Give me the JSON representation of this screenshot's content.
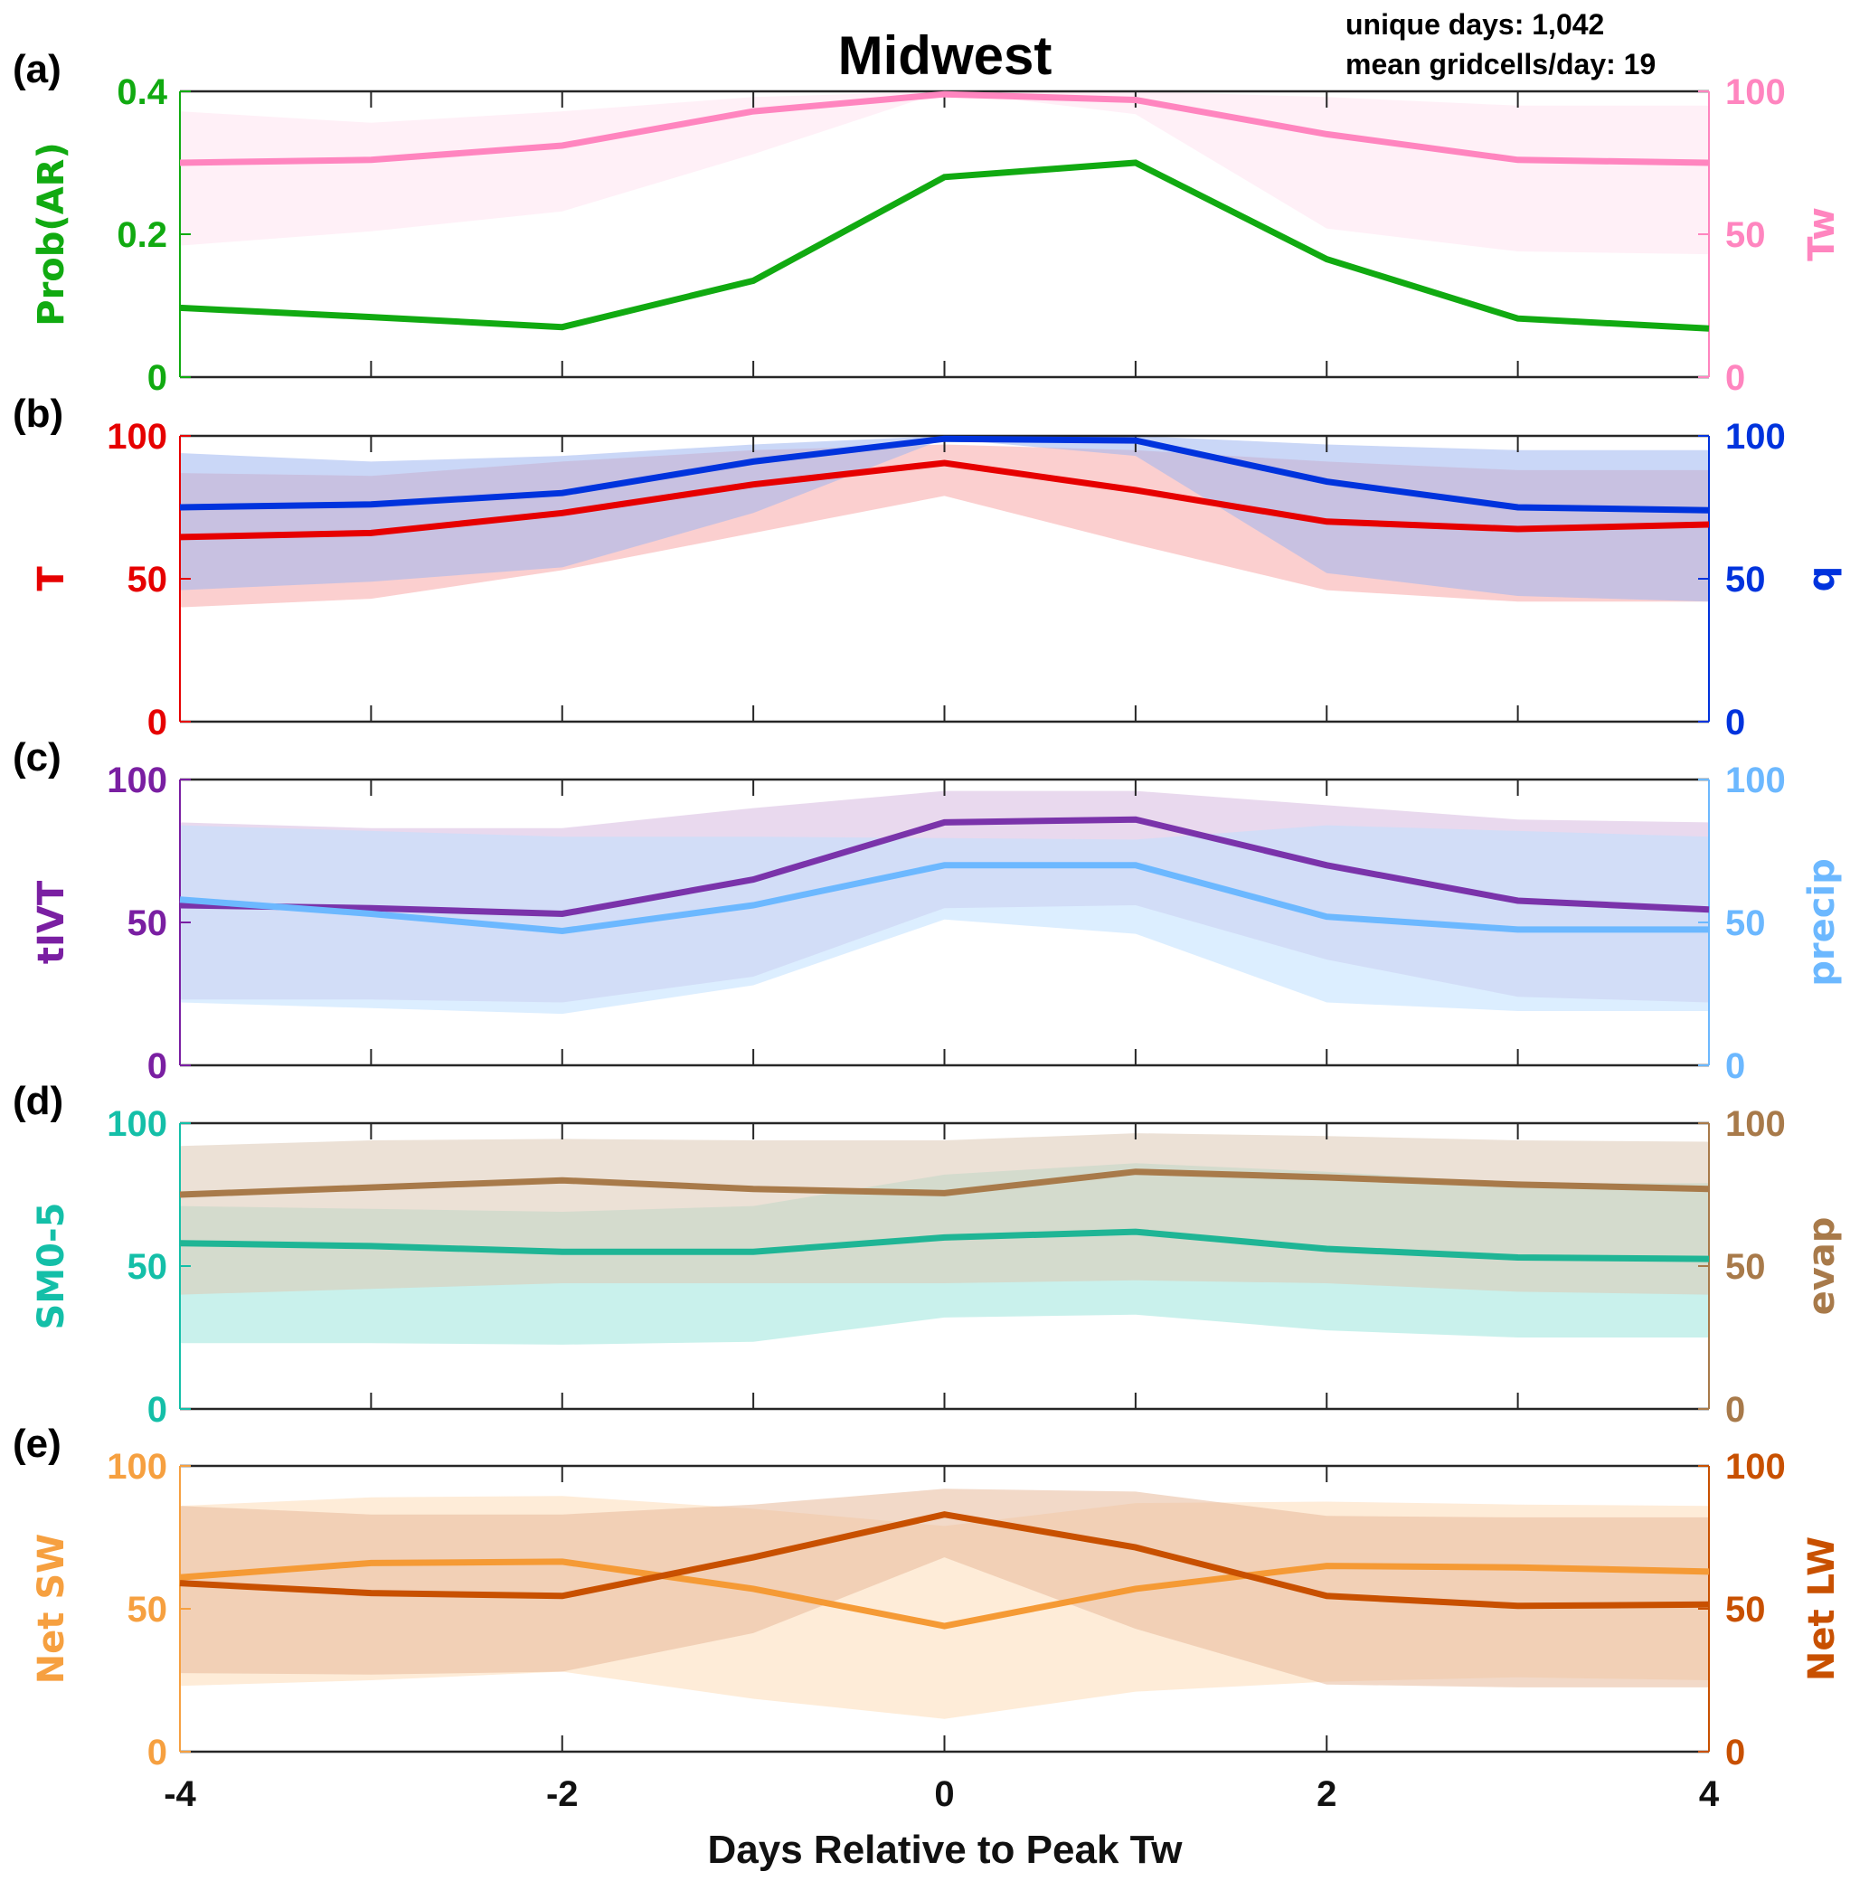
{
  "chart_data": {
    "type": "line",
    "title": "Midwest",
    "annotations": [
      "unique days: 1,042",
      "mean gridcells/day: 19"
    ],
    "xlabel": "Days Relative to Peak Tw",
    "x": [
      -4,
      -3,
      -2,
      -1,
      0,
      1,
      2,
      3,
      4
    ],
    "xlim": [
      -4,
      4
    ],
    "xticks": [
      -4,
      -2,
      0,
      2,
      4
    ],
    "xtick_labels": [
      "-4",
      "-2",
      "0",
      "2",
      "4"
    ],
    "grid": false,
    "panels": [
      {
        "letter": "(a)",
        "left_axis": {
          "label": "Prob(AR)",
          "color": "#11AA11",
          "ylim": [
            0,
            0.4
          ],
          "ticks": [
            0,
            0.2,
            0.4
          ],
          "tick_labels": [
            "0",
            "0.2",
            "0.4"
          ]
        },
        "right_axis": {
          "label": "Tw",
          "color": "#FF85BF",
          "ylim": [
            0,
            100
          ],
          "ticks": [
            0,
            50,
            100
          ],
          "tick_labels": [
            "0",
            "50",
            "100"
          ]
        },
        "series": [
          {
            "name": "Tw",
            "axis": "right",
            "color": "#FF85BF",
            "band_color": "#FFE3F0",
            "values": [
              75,
              76,
              81,
              93,
              99,
              97,
              85,
              76,
              75
            ],
            "upper": [
              93,
              89,
              93,
              98,
              100,
              100,
              98,
              95,
              95
            ],
            "lower": [
              46,
              51,
              58,
              78,
              100,
              92,
              52,
              44,
              43
            ]
          },
          {
            "name": "Prob(AR)",
            "axis": "left",
            "color": "#11AA11",
            "values": [
              0.097,
              0.084,
              0.07,
              0.135,
              0.28,
              0.3,
              0.165,
              0.082,
              0.068
            ]
          }
        ]
      },
      {
        "letter": "(b)",
        "left_axis": {
          "label": "T",
          "color": "#E60000",
          "ylim": [
            0,
            100
          ],
          "ticks": [
            0,
            50,
            100
          ],
          "tick_labels": [
            "0",
            "50",
            "100"
          ]
        },
        "right_axis": {
          "label": "q",
          "color": "#0033DD",
          "ylim": [
            0,
            100
          ],
          "ticks": [
            0,
            50,
            100
          ],
          "tick_labels": [
            "0",
            "50",
            "100"
          ]
        },
        "series": [
          {
            "name": "T",
            "axis": "left",
            "color": "#E60000",
            "band_color": "#F7A8A8",
            "values": [
              64.6,
              66,
              73,
              83,
              90.5,
              81,
              70,
              67.4,
              69
            ],
            "upper": [
              87,
              86,
              91,
              95,
              97,
              95,
              91,
              88,
              88
            ],
            "lower": [
              40,
              43,
              53,
              66,
              79,
              62,
              46,
              42,
              42
            ]
          },
          {
            "name": "q",
            "axis": "right",
            "color": "#0033DD",
            "band_color": "#9FB6F0",
            "values": [
              75,
              76,
              80,
              91,
              99,
              98.4,
              84,
              75,
              74
            ],
            "upper": [
              94,
              91,
              93,
              97,
              100,
              100,
              97,
              95,
              95
            ],
            "lower": [
              46,
              49,
              54,
              73,
              99,
              93,
              52,
              44,
              42
            ]
          }
        ]
      },
      {
        "letter": "(c)",
        "left_axis": {
          "label": "tIVT",
          "color": "#7A1FA2",
          "ylim": [
            0,
            100
          ],
          "ticks": [
            0,
            50,
            100
          ],
          "tick_labels": [
            "0",
            "50",
            "100"
          ]
        },
        "right_axis": {
          "label": "precip",
          "color": "#6CB8FF",
          "ylim": [
            0,
            100
          ],
          "ticks": [
            0,
            50,
            100
          ],
          "tick_labels": [
            "0",
            "50",
            "100"
          ]
        },
        "series": [
          {
            "name": "tIVT",
            "axis": "left",
            "color": "#7A33AA",
            "band_color": "#D7B9E0",
            "values": [
              56,
              55,
              53,
              65,
              85,
              86,
              70,
              57.6,
              54.5
            ],
            "upper": [
              85,
              83,
              83,
              90,
              96,
              96,
              91,
              86,
              85
            ],
            "lower": [
              23,
              23,
              22,
              31,
              55,
              56,
              37,
              24,
              22
            ]
          },
          {
            "name": "precip",
            "axis": "right",
            "color": "#6CB8FF",
            "band_color": "#BFE0FF",
            "values": [
              58,
              53,
              47,
              56,
              70,
              70,
              52,
              47.5,
              47.5
            ],
            "upper": [
              84,
              82,
              80,
              80,
              79.5,
              79,
              84,
              82,
              80
            ],
            "lower": [
              22,
              20,
              18,
              28,
              51,
              46,
              22,
              19,
              19
            ]
          }
        ]
      },
      {
        "letter": "(d)",
        "left_axis": {
          "label": "SM0-5",
          "color": "#14BFA8",
          "ylim": [
            0,
            100
          ],
          "ticks": [
            0,
            50,
            100
          ],
          "tick_labels": [
            "0",
            "50",
            "100"
          ]
        },
        "right_axis": {
          "label": "evap",
          "color": "#A87A4A",
          "ylim": [
            0,
            100
          ],
          "ticks": [
            0,
            50,
            100
          ],
          "tick_labels": [
            "0",
            "50",
            "100"
          ]
        },
        "series": [
          {
            "name": "SM0-5",
            "axis": "left",
            "color": "#1FB595",
            "band_color": "#9DE6DC",
            "values": [
              58,
              57,
              55,
              55,
              60,
              62,
              56,
              53,
              52.5
            ],
            "upper": [
              71,
              70,
              69,
              71,
              82,
              86,
              83,
              79,
              79
            ],
            "lower": [
              23,
              23,
              22.5,
              23.5,
              32,
              33,
              27.5,
              25,
              25
            ]
          },
          {
            "name": "evap",
            "axis": "right",
            "color": "#A87A4A",
            "band_color": "#DCC8B5",
            "values": [
              75,
              77.5,
              80,
              77,
              75.5,
              83,
              81,
              78.5,
              77
            ],
            "upper": [
              92,
              94,
              94.5,
              94,
              94,
              96.5,
              95.5,
              94,
              93.5
            ],
            "lower": [
              40,
              42,
              44,
              44,
              44,
              45,
              44,
              41,
              40
            ]
          }
        ]
      },
      {
        "letter": "(e)",
        "left_axis": {
          "label": "Net SW",
          "color": "#F6A040",
          "ylim": [
            0,
            100
          ],
          "ticks": [
            0,
            50,
            100
          ],
          "tick_labels": [
            "0",
            "50",
            "100"
          ]
        },
        "right_axis": {
          "label": "Net LW",
          "color": "#C85000",
          "ylim": [
            0,
            100
          ],
          "ticks": [
            0,
            50,
            100
          ],
          "tick_labels": [
            "0",
            "50",
            "100"
          ]
        },
        "series": [
          {
            "name": "Net SW",
            "axis": "left",
            "color": "#F59A35",
            "band_color": "#FDDDB8",
            "values": [
              61,
              66,
              66.5,
              57,
              44,
              57,
              65,
              64.5,
              63
            ],
            "upper": [
              86,
              89,
              89.5,
              85,
              79,
              87,
              87.5,
              86.5,
              86
            ],
            "lower": [
              23,
              25,
              28,
              18.5,
              11.5,
              21,
              24.5,
              26,
              25
            ]
          },
          {
            "name": "Net LW",
            "axis": "right",
            "color": "#C85000",
            "band_color": "#E8B99A",
            "values": [
              59,
              55.5,
              54.5,
              68,
              83,
              71.5,
              54.5,
              51,
              51.5
            ],
            "upper": [
              86,
              83,
              83,
              86.5,
              92,
              91,
              82.5,
              82,
              82
            ],
            "lower": [
              27.5,
              27,
              28,
              41.5,
              68,
              43,
              23.5,
              22.5,
              22.5
            ]
          }
        ]
      }
    ]
  }
}
